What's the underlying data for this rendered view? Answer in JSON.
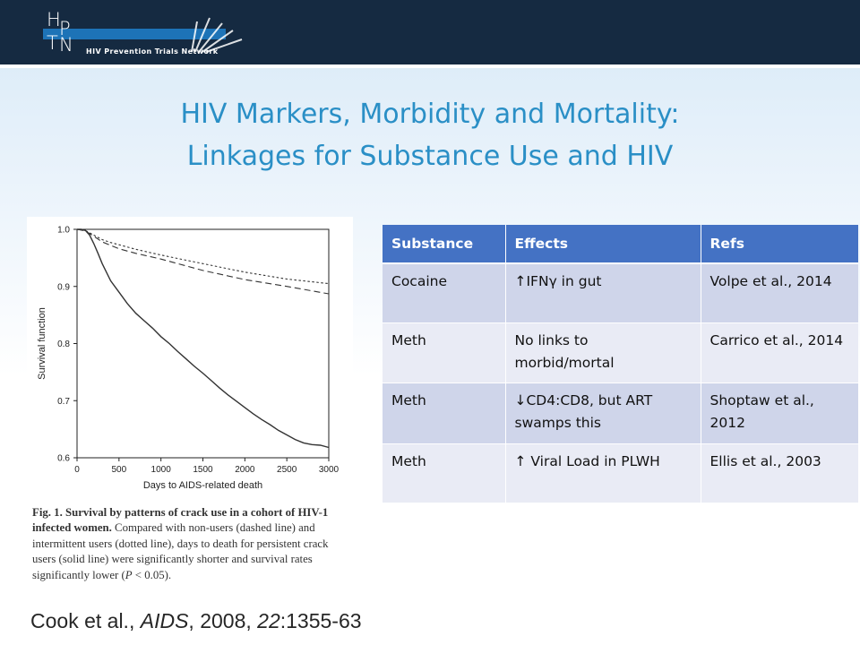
{
  "header": {
    "logo_network": "HIV Prevention Trials Network",
    "logo_letters": [
      "H",
      "P",
      "T",
      "N"
    ]
  },
  "slide": {
    "title_line1": "HIV Markers, Morbidity and Mortality:",
    "title_line2": "Linkages for Substance Use and HIV"
  },
  "figure": {
    "caption_bold": "Fig. 1. Survival by patterns of crack use in a cohort of HIV-1 infected women.",
    "caption_rest": " Compared with non-users (dashed line) and intermittent users (dotted line), days to death for persistent crack users (solid line) were significantly shorter and survival rates significantly lower (",
    "caption_p": "P",
    "caption_end": " < 0.05)."
  },
  "table": {
    "headers": [
      "Substance",
      "Effects",
      "Refs"
    ],
    "rows": [
      {
        "substance": "Cocaine",
        "effects": "↑IFNγ in gut",
        "refs": "Volpe et al., 2014"
      },
      {
        "substance": "Meth",
        "effects": "No links to morbid/mortal",
        "refs": "Carrico et al., 2014"
      },
      {
        "substance": "Meth",
        "effects": "↓CD4:CD8, but ART swamps this",
        "refs": "Shoptaw et al., 2012"
      },
      {
        "substance": "Meth",
        "effects": "↑ Viral Load in PLWH",
        "refs": "Ellis et al., 2003"
      }
    ]
  },
  "citation": {
    "authors": "Cook et al., ",
    "journal": "AIDS",
    "year": ", 2008, ",
    "volume": "22",
    "pages": ":1355-63"
  },
  "colors": {
    "header_bg": "#152a41",
    "title": "#2a8fc6",
    "table_header": "#4472c4",
    "row_odd": "#cfd5ea",
    "row_even": "#e9ebf5"
  },
  "chart_data": {
    "type": "line",
    "xlabel": "Days to AIDS-related death",
    "ylabel": "Survival function",
    "xlim": [
      0,
      3000
    ],
    "ylim": [
      0.6,
      1.0
    ],
    "x_ticks": [
      "0",
      "500",
      "1000",
      "1500",
      "2000",
      "2500",
      "3000"
    ],
    "y_ticks": [
      "0.6",
      "0.7",
      "0.8",
      "0.9",
      "1.0"
    ],
    "grid": false,
    "series": [
      {
        "style": "solid",
        "x": [
          0,
          50,
          100,
          150,
          200,
          250,
          300,
          400,
          500,
          600,
          700,
          800,
          900,
          1000,
          1100,
          1200,
          1300,
          1400,
          1500,
          1600,
          1700,
          1800,
          1900,
          2000,
          2100,
          2200,
          2300,
          2400,
          2500,
          2600,
          2700,
          2800,
          2900,
          3000
        ],
        "values": [
          1.0,
          1.0,
          0.998,
          0.99,
          0.975,
          0.958,
          0.94,
          0.91,
          0.89,
          0.87,
          0.853,
          0.84,
          0.827,
          0.812,
          0.8,
          0.786,
          0.773,
          0.76,
          0.748,
          0.735,
          0.722,
          0.71,
          0.699,
          0.688,
          0.677,
          0.667,
          0.658,
          0.648,
          0.64,
          0.632,
          0.626,
          0.623,
          0.622,
          0.618
        ]
      },
      {
        "style": "dotted",
        "x": [
          0,
          100,
          200,
          300,
          400,
          500,
          700,
          1000,
          1500,
          2000,
          2500,
          3000
        ],
        "values": [
          1.0,
          0.998,
          0.99,
          0.982,
          0.977,
          0.973,
          0.965,
          0.955,
          0.94,
          0.925,
          0.913,
          0.905
        ]
      },
      {
        "style": "dashed",
        "x": [
          0,
          100,
          200,
          300,
          400,
          500,
          700,
          1000,
          1500,
          2000,
          2500,
          3000
        ],
        "values": [
          1.0,
          0.997,
          0.988,
          0.978,
          0.972,
          0.966,
          0.958,
          0.948,
          0.928,
          0.912,
          0.9,
          0.887
        ]
      }
    ]
  }
}
